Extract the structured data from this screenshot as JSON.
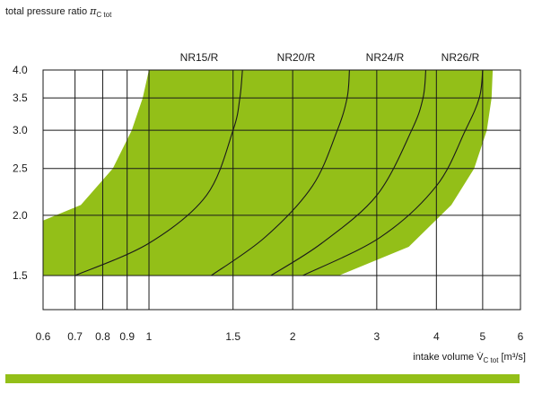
{
  "chart_data": {
    "type": "area",
    "ylabel": {
      "main": "total pressure ratio ",
      "symbol": "π",
      "subscript": "C tot"
    },
    "xlabel": {
      "main": "intake volume V̇",
      "subscript": "C tot",
      "unit": " [m³/s]"
    },
    "x_scale": "log",
    "y_scale": "log",
    "xlim": [
      0.6,
      6
    ],
    "ylim": [
      1.5,
      4.0
    ],
    "x_ticks": [
      0.6,
      0.7,
      0.8,
      0.9,
      1,
      1.5,
      2,
      3,
      4,
      5,
      6
    ],
    "x_tick_labels": [
      "0.6",
      "0.7",
      "0.8",
      "0.9",
      "1",
      "1.5",
      "2",
      "3",
      "4",
      "5",
      "6"
    ],
    "y_ticks": [
      1.5,
      2.0,
      2.5,
      3.0,
      3.5,
      4.0
    ],
    "y_tick_labels": [
      "1.5",
      "2.0",
      "2.5",
      "3.0",
      "3.5",
      "4.0"
    ],
    "grid": true,
    "fill_color": "#93bf18",
    "band_color": "#93bf18",
    "operating_range": {
      "left_boundary": [
        [
          1.0,
          4.0
        ],
        [
          0.97,
          3.5
        ],
        [
          0.92,
          3.0
        ],
        [
          0.84,
          2.5
        ],
        [
          0.72,
          2.1
        ],
        [
          0.6,
          1.95
        ]
      ],
      "right_boundary": [
        [
          5.25,
          4.0
        ],
        [
          5.22,
          3.5
        ],
        [
          5.1,
          3.0
        ],
        [
          4.8,
          2.5
        ],
        [
          4.3,
          2.1
        ],
        [
          3.5,
          1.72
        ],
        [
          2.5,
          1.5
        ]
      ]
    },
    "model_labels": [
      "NR15/R",
      "NR20/R",
      "NR24/R",
      "NR26/R"
    ],
    "series": [
      {
        "name": "NR15/R",
        "points": [
          [
            0.7,
            1.5
          ],
          [
            1.0,
            1.75
          ],
          [
            1.32,
            2.2
          ],
          [
            1.5,
            3.0
          ],
          [
            1.55,
            3.5
          ],
          [
            1.57,
            4.0
          ]
        ]
      },
      {
        "name": "NR20/R",
        "points": [
          [
            1.35,
            1.5
          ],
          [
            1.75,
            1.8
          ],
          [
            2.2,
            2.3
          ],
          [
            2.48,
            3.0
          ],
          [
            2.6,
            3.5
          ],
          [
            2.63,
            4.0
          ]
        ]
      },
      {
        "name": "NR24/R",
        "points": [
          [
            1.8,
            1.5
          ],
          [
            2.3,
            1.75
          ],
          [
            3.0,
            2.2
          ],
          [
            3.55,
            3.0
          ],
          [
            3.75,
            3.5
          ],
          [
            3.8,
            4.0
          ]
        ]
      },
      {
        "name": "NR26/R",
        "points": [
          [
            2.1,
            1.5
          ],
          [
            3.05,
            1.8
          ],
          [
            4.0,
            2.3
          ],
          [
            4.6,
            3.0
          ],
          [
            4.92,
            3.5
          ],
          [
            5.0,
            4.0
          ]
        ]
      }
    ]
  }
}
